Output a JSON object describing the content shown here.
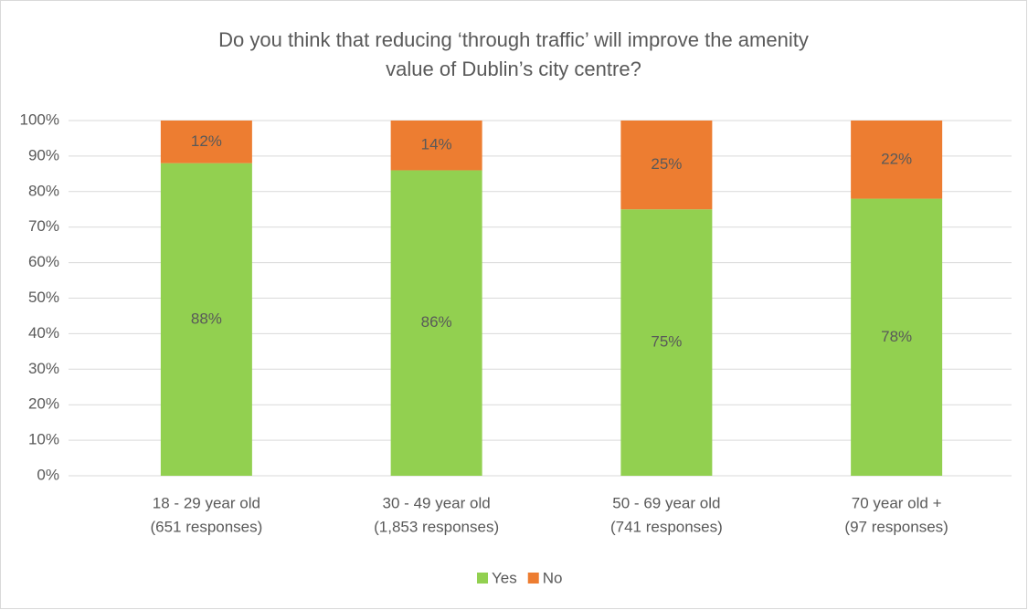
{
  "chart_data": {
    "type": "stacked_bar",
    "title": "Do you think that reducing ‘through traffic’ will improve the amenity value of Dublin’s city centre?",
    "categories": [
      [
        "18 - 29 year old",
        "(651 responses)"
      ],
      [
        "30 - 49 year old",
        "(1,853 responses)"
      ],
      [
        "50 - 69 year old",
        "(741 responses)"
      ],
      [
        "70 year old +",
        "(97 responses)"
      ]
    ],
    "series": [
      {
        "name": "Yes",
        "color": "#92d050",
        "values": [
          88,
          86,
          75,
          78
        ],
        "value_labels": [
          "88%",
          "86%",
          "75%",
          "78%"
        ]
      },
      {
        "name": "No",
        "color": "#ed7d31",
        "values": [
          12,
          14,
          25,
          22
        ],
        "value_labels": [
          "12%",
          "14%",
          "25%",
          "22%"
        ]
      }
    ],
    "ylim": [
      0,
      100
    ],
    "yticks": [
      {
        "value": 0,
        "label": "0%"
      },
      {
        "value": 10,
        "label": "10%"
      },
      {
        "value": 20,
        "label": "20%"
      },
      {
        "value": 30,
        "label": "30%"
      },
      {
        "value": 40,
        "label": "40%"
      },
      {
        "value": 50,
        "label": "50%"
      },
      {
        "value": 60,
        "label": "60%"
      },
      {
        "value": 70,
        "label": "70%"
      },
      {
        "value": 80,
        "label": "80%"
      },
      {
        "value": 90,
        "label": "90%"
      },
      {
        "value": 100,
        "label": "100%"
      }
    ],
    "grid": true,
    "legend": "bottom"
  }
}
